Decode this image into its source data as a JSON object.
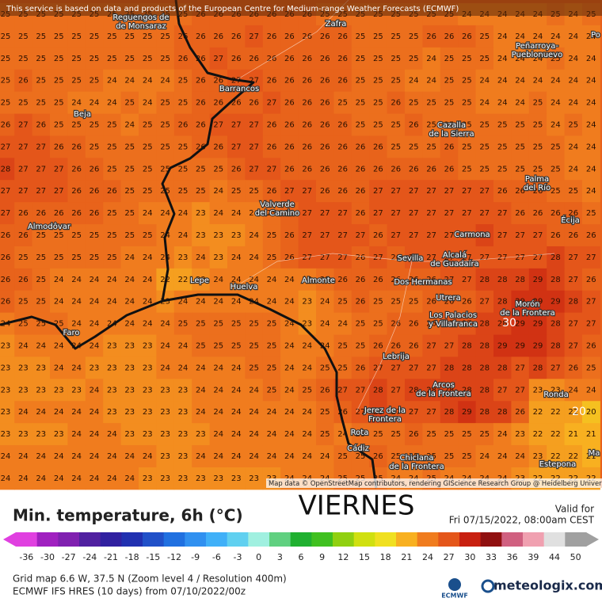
{
  "banner": "This service is based on data and products of the European Centre for Medium-range Weather Forecasts (ECMWF)",
  "attribution": "Map data © OpenStreetMap contributors, rendering GIScience Research Group @ Heidelberg University",
  "title": "Min. temperature, 6h (°C)",
  "day": "VIERNES",
  "valid_label": "Valid for",
  "valid_time": "Fri 07/15/2022, 08:00am CEST",
  "grid_info": "Grid map 6.6 W, 37.5 N (Zoom level 4 / Resolution 400m)",
  "model_info": "ECMWF IFS HRES (10 days) from 07/10/2022/00z",
  "ecmwf_logo": "ECMWF",
  "brand": "meteologix.com",
  "colorbar": {
    "ticks": [
      -36,
      -30,
      -27,
      -24,
      -21,
      -18,
      -15,
      -12,
      -9,
      -6,
      -3,
      0,
      3,
      6,
      9,
      12,
      15,
      18,
      21,
      24,
      27,
      30,
      33,
      36,
      39,
      44,
      50
    ],
    "colors": [
      "#e040e0",
      "#a020c0",
      "#8020b0",
      "#5020a0",
      "#3020a0",
      "#2030b0",
      "#2050c8",
      "#2070e0",
      "#3090f0",
      "#40b0f8",
      "#60d0f0",
      "#a0f0e0",
      "#60d080",
      "#20b030",
      "#40c020",
      "#90d010",
      "#d0e010",
      "#f0e020",
      "#f8b020",
      "#f07c1e",
      "#e4561a",
      "#c82010",
      "#901010",
      "#d06080",
      "#f0a0b0",
      "#e0e0e0",
      "#a0a0a0"
    ]
  },
  "contour_labels": [
    "30",
    "20"
  ],
  "places": [
    {
      "lines": [
        "Reguengos de",
        "de Monsaraz"
      ]
    },
    {
      "lines": [
        "Zafra"
      ]
    },
    {
      "lines": [
        "Peñarroya-",
        "Pueblonuevo"
      ]
    },
    {
      "lines": [
        "Barrancos"
      ]
    },
    {
      "lines": [
        "Beja"
      ]
    },
    {
      "lines": [
        "Cazalla",
        "de la Sierra"
      ]
    },
    {
      "lines": [
        "Palma",
        "del Río"
      ]
    },
    {
      "lines": [
        "Valverde",
        "del Camino"
      ]
    },
    {
      "lines": [
        "Écija"
      ]
    },
    {
      "lines": [
        "Almodôvar"
      ]
    },
    {
      "lines": [
        "Carmona"
      ]
    },
    {
      "lines": [
        "Sevilla"
      ]
    },
    {
      "lines": [
        "Alcalá",
        "de Guadaíra"
      ]
    },
    {
      "lines": [
        "Lepe"
      ]
    },
    {
      "lines": [
        "Almonte"
      ]
    },
    {
      "lines": [
        "Huelva"
      ]
    },
    {
      "lines": [
        "Dos Hermanas"
      ]
    },
    {
      "lines": [
        "Utrera"
      ]
    },
    {
      "lines": [
        "Morón",
        "de la Frontera"
      ]
    },
    {
      "lines": [
        "Los Palacios",
        "y Villafranca"
      ]
    },
    {
      "lines": [
        "Faro"
      ]
    },
    {
      "lines": [
        "Lebrija"
      ]
    },
    {
      "lines": [
        "Arcos",
        "de la Frontera"
      ]
    },
    {
      "lines": [
        "Ronda"
      ]
    },
    {
      "lines": [
        "Jerez de la",
        "Frontera"
      ]
    },
    {
      "lines": [
        "Rota"
      ]
    },
    {
      "lines": [
        "Cádiz"
      ]
    },
    {
      "lines": [
        "Chiclana",
        "de la Frontera"
      ]
    },
    {
      "lines": [
        "Estepona"
      ]
    },
    {
      "lines": [
        "Po"
      ]
    },
    {
      "lines": [
        "Ma"
      ]
    }
  ],
  "grid": [
    [
      25,
      25,
      25,
      25,
      25,
      25,
      25,
      25,
      25,
      25,
      25,
      26,
      26,
      26,
      26,
      26,
      26,
      26,
      25,
      25,
      25,
      25,
      25,
      25,
      25,
      25,
      24,
      24,
      24,
      24,
      24,
      25,
      24,
      25
    ],
    [
      25,
      25,
      25,
      25,
      25,
      25,
      25,
      25,
      25,
      25,
      26,
      26,
      26,
      26,
      27,
      26,
      26,
      26,
      26,
      26,
      25,
      25,
      25,
      25,
      26,
      26,
      26,
      25,
      24,
      24,
      24,
      24,
      24,
      24
    ],
    [
      25,
      25,
      25,
      25,
      25,
      25,
      25,
      25,
      25,
      25,
      26,
      26,
      27,
      26,
      26,
      26,
      26,
      26,
      26,
      26,
      25,
      25,
      25,
      25,
      24,
      25,
      25,
      25,
      24,
      24,
      24,
      25,
      24,
      24
    ],
    [
      25,
      26,
      25,
      25,
      25,
      25,
      24,
      24,
      24,
      24,
      25,
      26,
      26,
      27,
      27,
      26,
      26,
      26,
      26,
      26,
      25,
      25,
      25,
      24,
      24,
      25,
      25,
      24,
      24,
      24,
      24,
      24,
      24,
      24
    ],
    [
      25,
      25,
      25,
      25,
      24,
      24,
      24,
      25,
      24,
      25,
      25,
      26,
      26,
      26,
      26,
      27,
      26,
      26,
      26,
      25,
      25,
      25,
      26,
      25,
      25,
      25,
      25,
      24,
      24,
      24,
      25,
      24,
      24,
      24
    ],
    [
      26,
      27,
      26,
      25,
      25,
      25,
      25,
      24,
      25,
      25,
      26,
      26,
      27,
      27,
      27,
      26,
      26,
      26,
      26,
      26,
      25,
      25,
      25,
      26,
      25,
      25,
      25,
      25,
      25,
      25,
      25,
      24,
      25,
      24
    ],
    [
      27,
      27,
      27,
      26,
      26,
      25,
      25,
      25,
      25,
      25,
      25,
      26,
      26,
      27,
      27,
      26,
      26,
      26,
      26,
      26,
      26,
      26,
      25,
      25,
      25,
      26,
      25,
      25,
      25,
      25,
      25,
      25,
      24,
      24
    ],
    [
      28,
      27,
      27,
      27,
      26,
      26,
      25,
      25,
      25,
      25,
      25,
      25,
      25,
      26,
      27,
      27,
      26,
      26,
      26,
      26,
      26,
      26,
      26,
      26,
      26,
      26,
      25,
      25,
      25,
      25,
      25,
      25,
      24,
      24
    ],
    [
      27,
      27,
      27,
      27,
      26,
      26,
      26,
      25,
      25,
      25,
      25,
      25,
      24,
      25,
      25,
      26,
      27,
      27,
      26,
      26,
      26,
      27,
      27,
      27,
      27,
      27,
      27,
      27,
      26,
      26,
      26,
      25,
      25,
      24
    ],
    [
      27,
      26,
      26,
      26,
      26,
      26,
      25,
      25,
      24,
      24,
      24,
      23,
      24,
      24,
      24,
      25,
      26,
      27,
      27,
      27,
      26,
      27,
      27,
      27,
      27,
      27,
      27,
      27,
      27,
      26,
      26,
      26,
      26,
      25
    ],
    [
      26,
      26,
      25,
      25,
      25,
      25,
      25,
      25,
      25,
      24,
      24,
      23,
      23,
      23,
      24,
      25,
      26,
      27,
      27,
      27,
      27,
      26,
      27,
      27,
      27,
      27,
      27,
      28,
      27,
      27,
      27,
      26,
      26,
      26
    ],
    [
      26,
      25,
      25,
      25,
      25,
      25,
      25,
      24,
      24,
      24,
      23,
      24,
      23,
      24,
      24,
      25,
      26,
      27,
      27,
      27,
      26,
      27,
      26,
      27,
      27,
      27,
      27,
      27,
      27,
      27,
      27,
      28,
      27,
      27
    ],
    [
      26,
      26,
      25,
      24,
      24,
      24,
      24,
      24,
      24,
      22,
      22,
      23,
      24,
      24,
      24,
      24,
      24,
      24,
      25,
      26,
      26,
      26,
      26,
      26,
      26,
      27,
      27,
      28,
      28,
      28,
      29,
      28,
      27,
      26
    ],
    [
      26,
      25,
      25,
      24,
      24,
      24,
      24,
      24,
      24,
      23,
      24,
      24,
      24,
      24,
      24,
      24,
      24,
      23,
      24,
      25,
      26,
      25,
      25,
      25,
      26,
      26,
      26,
      27,
      28,
      29,
      29,
      29,
      28,
      27
    ],
    [
      24,
      25,
      25,
      25,
      24,
      24,
      24,
      24,
      24,
      24,
      25,
      25,
      25,
      25,
      25,
      25,
      24,
      23,
      24,
      24,
      25,
      25,
      26,
      26,
      26,
      27,
      27,
      28,
      28,
      29,
      29,
      28,
      27,
      27
    ],
    [
      23,
      24,
      24,
      24,
      24,
      24,
      23,
      23,
      23,
      24,
      24,
      25,
      25,
      25,
      25,
      25,
      24,
      24,
      24,
      25,
      25,
      26,
      26,
      26,
      27,
      27,
      28,
      28,
      29,
      29,
      29,
      28,
      27,
      26
    ],
    [
      23,
      23,
      23,
      24,
      24,
      23,
      23,
      23,
      23,
      24,
      24,
      24,
      24,
      24,
      25,
      25,
      24,
      24,
      25,
      25,
      26,
      27,
      27,
      27,
      27,
      28,
      28,
      28,
      28,
      27,
      28,
      27,
      26,
      25
    ],
    [
      23,
      23,
      23,
      23,
      23,
      24,
      23,
      23,
      23,
      23,
      23,
      24,
      24,
      24,
      24,
      25,
      24,
      25,
      26,
      27,
      27,
      28,
      27,
      28,
      28,
      28,
      28,
      28,
      27,
      27,
      23,
      23,
      24,
      24
    ],
    [
      23,
      24,
      24,
      24,
      24,
      24,
      23,
      23,
      23,
      23,
      23,
      24,
      24,
      24,
      24,
      24,
      24,
      24,
      25,
      26,
      27,
      28,
      27,
      27,
      27,
      28,
      29,
      28,
      28,
      26,
      22,
      22,
      22,
      20
    ],
    [
      23,
      23,
      23,
      23,
      24,
      24,
      24,
      23,
      23,
      23,
      23,
      23,
      24,
      24,
      24,
      24,
      24,
      24,
      25,
      24,
      25,
      25,
      25,
      26,
      25,
      25,
      25,
      25,
      24,
      23,
      22,
      22,
      21,
      21
    ],
    [
      24,
      24,
      24,
      24,
      24,
      24,
      24,
      24,
      24,
      23,
      23,
      24,
      24,
      24,
      24,
      24,
      24,
      24,
      24,
      25,
      25,
      26,
      25,
      25,
      25,
      25,
      25,
      24,
      24,
      24,
      23,
      22,
      22,
      21
    ],
    [
      24,
      24,
      24,
      24,
      24,
      24,
      24,
      24,
      23,
      23,
      23,
      23,
      23,
      23,
      23,
      23,
      24,
      24,
      24,
      25,
      25,
      25,
      24,
      24,
      25,
      24,
      24,
      24,
      24,
      23,
      22,
      22,
      22,
      22
    ]
  ]
}
